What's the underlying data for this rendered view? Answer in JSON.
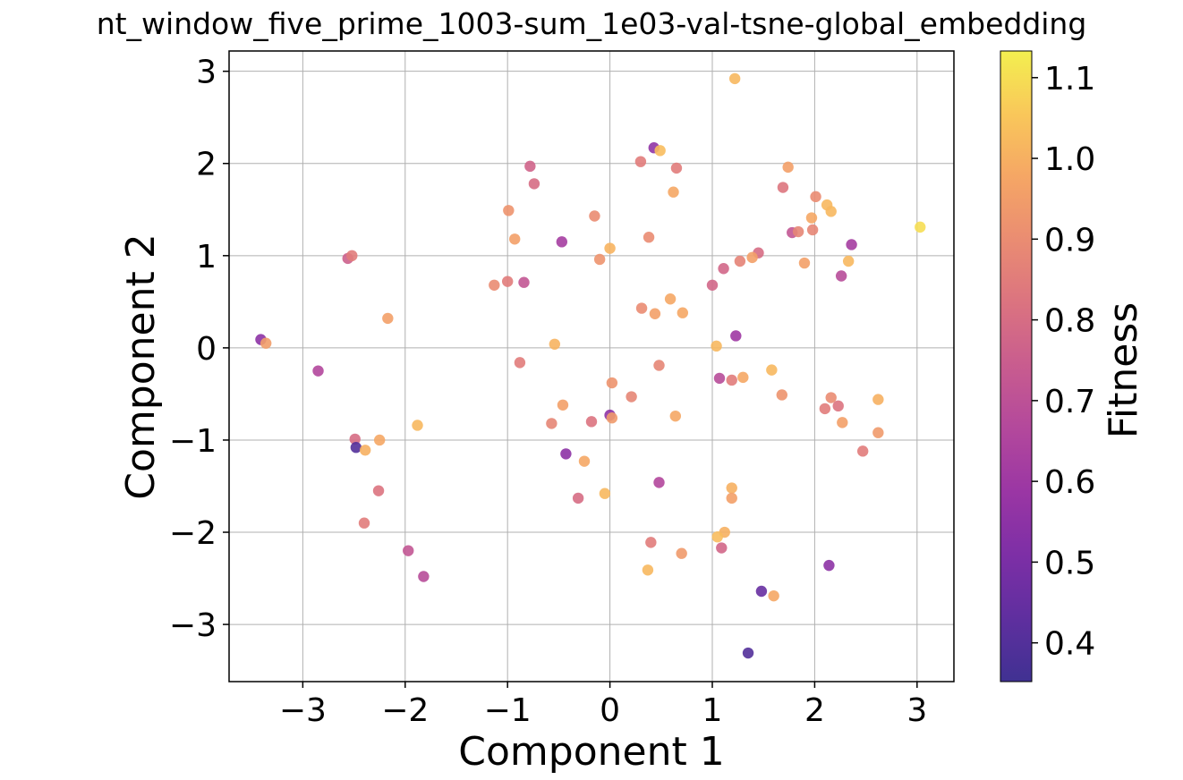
{
  "chart_data": {
    "type": "scatter",
    "title": "nt_window_five_prime_1003-sum_1e03-val-tsne-global_embedding",
    "xlabel": "Component 1",
    "ylabel": "Component 2",
    "colorbar_label": "Fitness",
    "xlim": [
      -3.72,
      3.36
    ],
    "ylim": [
      -3.62,
      3.22
    ],
    "clim": [
      0.352,
      1.133
    ],
    "xticks": [
      -3,
      -2,
      -1,
      0,
      1,
      2,
      3
    ],
    "yticks": [
      -3,
      -2,
      -1,
      0,
      1,
      2,
      3
    ],
    "cticks": [
      0.4,
      0.5,
      0.6,
      0.7,
      0.8,
      0.9,
      1.0,
      1.1
    ],
    "grid": true,
    "colormap": "plasma",
    "points": [
      {
        "x": 1.22,
        "y": 2.92,
        "c": 1.02
      },
      {
        "x": 0.43,
        "y": 2.17,
        "c": 0.56
      },
      {
        "x": 0.49,
        "y": 2.14,
        "c": 1.03
      },
      {
        "x": 0.3,
        "y": 2.02,
        "c": 0.85
      },
      {
        "x": 0.65,
        "y": 1.95,
        "c": 0.85
      },
      {
        "x": -0.78,
        "y": 1.97,
        "c": 0.77
      },
      {
        "x": -0.74,
        "y": 1.78,
        "c": 0.8
      },
      {
        "x": 0.62,
        "y": 1.69,
        "c": 0.98
      },
      {
        "x": 1.74,
        "y": 1.96,
        "c": 0.96
      },
      {
        "x": 1.69,
        "y": 1.74,
        "c": 0.83
      },
      {
        "x": 2.01,
        "y": 1.64,
        "c": 0.9
      },
      {
        "x": 2.12,
        "y": 1.55,
        "c": 1.02
      },
      {
        "x": 2.16,
        "y": 1.48,
        "c": 1.02
      },
      {
        "x": -0.99,
        "y": 1.49,
        "c": 0.92
      },
      {
        "x": -0.15,
        "y": 1.43,
        "c": 0.9
      },
      {
        "x": -0.47,
        "y": 1.15,
        "c": 0.62
      },
      {
        "x": -0.93,
        "y": 1.18,
        "c": 0.96
      },
      {
        "x": 0.0,
        "y": 1.08,
        "c": 1.01
      },
      {
        "x": 0.38,
        "y": 1.2,
        "c": 0.9
      },
      {
        "x": -0.1,
        "y": 0.96,
        "c": 0.92
      },
      {
        "x": 1.97,
        "y": 1.41,
        "c": 0.98
      },
      {
        "x": 1.98,
        "y": 1.28,
        "c": 0.88
      },
      {
        "x": 1.78,
        "y": 1.25,
        "c": 0.72
      },
      {
        "x": 1.84,
        "y": 1.26,
        "c": 0.88
      },
      {
        "x": 2.36,
        "y": 1.12,
        "c": 0.62
      },
      {
        "x": 3.03,
        "y": 1.31,
        "c": 1.1
      },
      {
        "x": 1.45,
        "y": 1.03,
        "c": 0.8
      },
      {
        "x": 1.39,
        "y": 0.98,
        "c": 0.96
      },
      {
        "x": 1.27,
        "y": 0.94,
        "c": 0.87
      },
      {
        "x": 1.11,
        "y": 0.86,
        "c": 0.78
      },
      {
        "x": 1.9,
        "y": 0.92,
        "c": 0.96
      },
      {
        "x": 2.33,
        "y": 0.94,
        "c": 1.02
      },
      {
        "x": 2.26,
        "y": 0.78,
        "c": 0.68
      },
      {
        "x": 1.0,
        "y": 0.68,
        "c": 0.78
      },
      {
        "x": -2.56,
        "y": 0.97,
        "c": 0.76
      },
      {
        "x": -2.52,
        "y": 1.0,
        "c": 0.85
      },
      {
        "x": -1.13,
        "y": 0.68,
        "c": 0.9
      },
      {
        "x": -1.0,
        "y": 0.72,
        "c": 0.85
      },
      {
        "x": -0.84,
        "y": 0.71,
        "c": 0.72
      },
      {
        "x": 0.31,
        "y": 0.43,
        "c": 0.9
      },
      {
        "x": 0.44,
        "y": 0.37,
        "c": 0.96
      },
      {
        "x": 0.59,
        "y": 0.53,
        "c": 0.98
      },
      {
        "x": 0.71,
        "y": 0.38,
        "c": 0.98
      },
      {
        "x": -2.17,
        "y": 0.32,
        "c": 0.96
      },
      {
        "x": -3.41,
        "y": 0.09,
        "c": 0.55
      },
      {
        "x": -3.36,
        "y": 0.05,
        "c": 0.95
      },
      {
        "x": -0.54,
        "y": 0.04,
        "c": 1.01
      },
      {
        "x": 1.04,
        "y": 0.02,
        "c": 1.02
      },
      {
        "x": 1.23,
        "y": 0.13,
        "c": 0.6
      },
      {
        "x": -2.85,
        "y": -0.25,
        "c": 0.66
      },
      {
        "x": -0.88,
        "y": -0.16,
        "c": 0.85
      },
      {
        "x": 0.48,
        "y": -0.19,
        "c": 0.88
      },
      {
        "x": 1.58,
        "y": -0.24,
        "c": 1.02
      },
      {
        "x": 1.07,
        "y": -0.33,
        "c": 0.68
      },
      {
        "x": 1.19,
        "y": -0.35,
        "c": 0.85
      },
      {
        "x": 1.3,
        "y": -0.32,
        "c": 0.98
      },
      {
        "x": 1.68,
        "y": -0.51,
        "c": 0.92
      },
      {
        "x": 2.16,
        "y": -0.54,
        "c": 0.9
      },
      {
        "x": 2.62,
        "y": -0.56,
        "c": 1.0
      },
      {
        "x": 2.23,
        "y": -0.63,
        "c": 0.82
      },
      {
        "x": 2.1,
        "y": -0.66,
        "c": 0.85
      },
      {
        "x": 2.27,
        "y": -0.81,
        "c": 0.96
      },
      {
        "x": 2.62,
        "y": -0.92,
        "c": 0.94
      },
      {
        "x": 2.47,
        "y": -1.12,
        "c": 0.85
      },
      {
        "x": 0.02,
        "y": -0.38,
        "c": 0.92
      },
      {
        "x": 0.21,
        "y": -0.53,
        "c": 0.88
      },
      {
        "x": -0.46,
        "y": -0.62,
        "c": 0.96
      },
      {
        "x": 0.0,
        "y": -0.73,
        "c": 0.55
      },
      {
        "x": 0.02,
        "y": -0.76,
        "c": 0.94
      },
      {
        "x": 0.64,
        "y": -0.74,
        "c": 0.98
      },
      {
        "x": -0.18,
        "y": -0.8,
        "c": 0.82
      },
      {
        "x": -0.57,
        "y": -0.82,
        "c": 0.88
      },
      {
        "x": -1.88,
        "y": -0.84,
        "c": 1.02
      },
      {
        "x": -2.49,
        "y": -0.99,
        "c": 0.8
      },
      {
        "x": -2.25,
        "y": -1.0,
        "c": 0.98
      },
      {
        "x": -2.48,
        "y": -1.08,
        "c": 0.4
      },
      {
        "x": -2.39,
        "y": -1.11,
        "c": 1.0
      },
      {
        "x": -0.43,
        "y": -1.15,
        "c": 0.55
      },
      {
        "x": -0.25,
        "y": -1.23,
        "c": 0.98
      },
      {
        "x": 0.48,
        "y": -1.46,
        "c": 0.66
      },
      {
        "x": -2.26,
        "y": -1.55,
        "c": 0.82
      },
      {
        "x": -0.31,
        "y": -1.63,
        "c": 0.8
      },
      {
        "x": -0.05,
        "y": -1.58,
        "c": 1.02
      },
      {
        "x": 1.19,
        "y": -1.52,
        "c": 1.0
      },
      {
        "x": 1.19,
        "y": -1.63,
        "c": 0.96
      },
      {
        "x": -2.4,
        "y": -1.9,
        "c": 0.85
      },
      {
        "x": 1.12,
        "y": -2.0,
        "c": 1.0
      },
      {
        "x": 1.05,
        "y": -2.05,
        "c": 1.03
      },
      {
        "x": 0.4,
        "y": -2.11,
        "c": 0.85
      },
      {
        "x": 1.09,
        "y": -2.17,
        "c": 0.78
      },
      {
        "x": -1.97,
        "y": -2.2,
        "c": 0.72
      },
      {
        "x": 0.7,
        "y": -2.23,
        "c": 0.94
      },
      {
        "x": -1.82,
        "y": -2.48,
        "c": 0.68
      },
      {
        "x": 0.37,
        "y": -2.41,
        "c": 1.02
      },
      {
        "x": 2.14,
        "y": -2.36,
        "c": 0.55
      },
      {
        "x": 1.48,
        "y": -2.64,
        "c": 0.45
      },
      {
        "x": 1.6,
        "y": -2.69,
        "c": 0.98
      },
      {
        "x": 1.35,
        "y": -3.31,
        "c": 0.4
      }
    ]
  }
}
